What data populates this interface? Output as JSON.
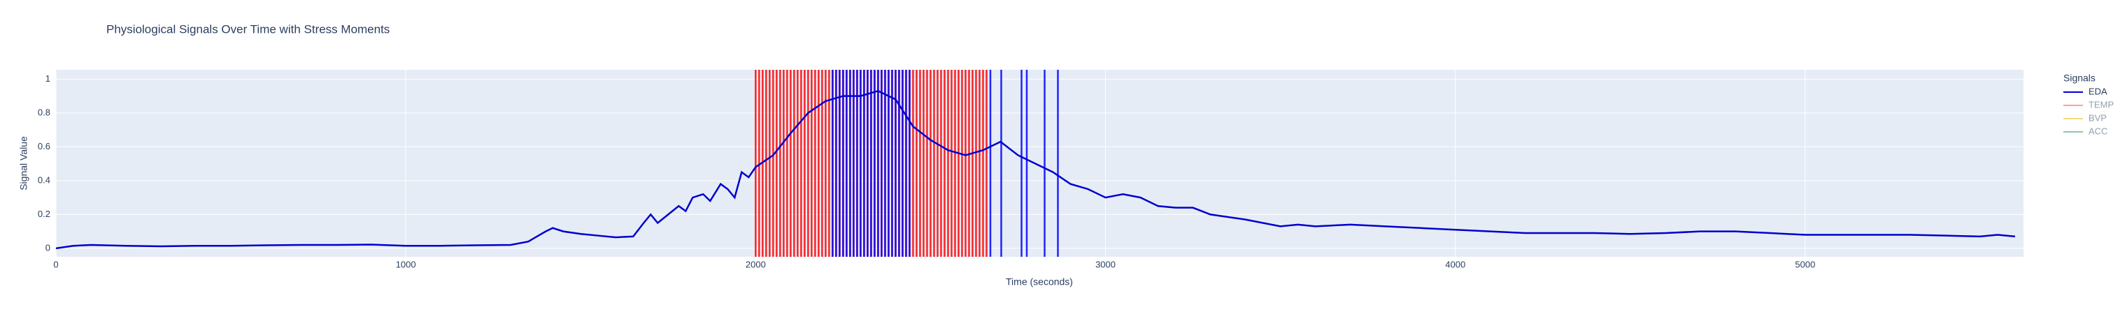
{
  "chart_data": {
    "type": "line",
    "title": "Physiological Signals Over Time with Stress Moments",
    "x_label": "Time (seconds)",
    "y_label": "Signal Value",
    "legend_title": "Signals",
    "x": [
      0,
      50,
      100,
      200,
      300,
      400,
      500,
      600,
      700,
      800,
      900,
      1000,
      1100,
      1200,
      1300,
      1350,
      1400,
      1420,
      1450,
      1500,
      1550,
      1600,
      1650,
      1680,
      1700,
      1720,
      1750,
      1780,
      1800,
      1820,
      1850,
      1870,
      1900,
      1920,
      1940,
      1960,
      1980,
      2000,
      2050,
      2100,
      2150,
      2200,
      2250,
      2300,
      2350,
      2400,
      2450,
      2500,
      2550,
      2600,
      2650,
      2700,
      2750,
      2800,
      2850,
      2900,
      2950,
      3000,
      3050,
      3100,
      3150,
      3200,
      3250,
      3300,
      3400,
      3500,
      3550,
      3600,
      3700,
      3800,
      3900,
      4000,
      4100,
      4200,
      4300,
      4400,
      4500,
      4600,
      4700,
      4800,
      4900,
      5000,
      5100,
      5200,
      5300,
      5400,
      5500,
      5550,
      5600
    ],
    "series": [
      {
        "name": "EDA",
        "color": "#0000cd",
        "values": [
          0,
          0.015,
          0.02,
          0.015,
          0.012,
          0.015,
          0.015,
          0.018,
          0.02,
          0.02,
          0.022,
          0.015,
          0.015,
          0.018,
          0.02,
          0.04,
          0.1,
          0.12,
          0.1,
          0.085,
          0.075,
          0.065,
          0.07,
          0.15,
          0.2,
          0.15,
          0.2,
          0.25,
          0.22,
          0.3,
          0.32,
          0.28,
          0.38,
          0.35,
          0.3,
          0.45,
          0.42,
          0.48,
          0.55,
          0.68,
          0.8,
          0.87,
          0.9,
          0.9,
          0.93,
          0.88,
          0.72,
          0.64,
          0.58,
          0.55,
          0.58,
          0.63,
          0.55,
          0.5,
          0.45,
          0.38,
          0.35,
          0.3,
          0.32,
          0.3,
          0.25,
          0.24,
          0.24,
          0.2,
          0.17,
          0.13,
          0.14,
          0.13,
          0.14,
          0.13,
          0.12,
          0.11,
          0.1,
          0.09,
          0.09,
          0.09,
          0.085,
          0.09,
          0.1,
          0.1,
          0.09,
          0.08,
          0.08,
          0.08,
          0.08,
          0.075,
          0.07,
          0.08,
          0.07
        ]
      }
    ],
    "hidden_series": [
      {
        "name": "TEMP",
        "color": "#ff4136"
      },
      {
        "name": "BVP",
        "color": "#e6b800"
      },
      {
        "name": "ACC",
        "color": "#2e8b57"
      }
    ],
    "stress_lines": [
      {
        "color": "#ff0000",
        "x": [
          2000,
          2010,
          2020,
          2030,
          2040,
          2050,
          2060,
          2070,
          2080,
          2090,
          2100,
          2110,
          2120,
          2130,
          2140,
          2150,
          2160,
          2170,
          2180,
          2190,
          2200,
          2210,
          2220,
          2230,
          2240,
          2250,
          2260,
          2270,
          2280,
          2290,
          2300,
          2310,
          2320,
          2330,
          2340,
          2350,
          2360,
          2370,
          2380,
          2390,
          2400,
          2410,
          2420,
          2430,
          2440,
          2450,
          2460,
          2470,
          2480,
          2490,
          2500,
          2510,
          2520,
          2530,
          2540,
          2550,
          2560,
          2570,
          2580,
          2590,
          2600,
          2610,
          2620,
          2630,
          2640,
          2650,
          2660
        ]
      },
      {
        "color": "#0000ff",
        "x": [
          2220,
          2230,
          2240,
          2250,
          2260,
          2270,
          2280,
          2290,
          2300,
          2310,
          2320,
          2330,
          2340,
          2350,
          2360,
          2370,
          2380,
          2390,
          2400,
          2410,
          2420,
          2430,
          2440,
          2671,
          2702,
          2760,
          2775,
          2826,
          2864
        ]
      }
    ],
    "xlim": [
      0,
      5624
    ],
    "ylim": [
      -0.05,
      1.055
    ],
    "xticks": [
      0,
      1000,
      2000,
      3000,
      4000,
      5000
    ],
    "yticks": [
      0,
      0.2,
      0.4,
      0.6,
      0.8,
      1
    ],
    "grid": true
  }
}
